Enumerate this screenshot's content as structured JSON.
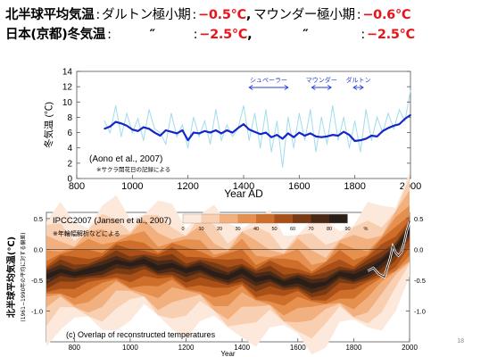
{
  "header": {
    "line1": {
      "label": "北半球平均気温",
      "colon": ":",
      "dalton_label": "ダルトン極小期",
      "dalton_colon": ":",
      "dalton_value": "−0.5℃",
      "sep": ",",
      "maunder_label": "マウンダー極小期",
      "maunder_colon": ":",
      "maunder_value": "−0.6℃"
    },
    "line2": {
      "label": "日本(京都)冬気温",
      "colon": ":",
      "ditto1": "″",
      "colon2": ":",
      "value1": "−2.5℃",
      "sep": ",",
      "ditto2": "″",
      "colon3": ":",
      "value2": "−2.5℃"
    }
  },
  "colors": {
    "raw_line": "#9fdcef",
    "smooth_line": "#1526c8",
    "period_arrow": "#2a3fd0",
    "header_red": "#e8141b",
    "overlap_shades": [
      "#fde9dc",
      "#f9cfb2",
      "#f2b07f",
      "#e6904f",
      "#cf6e2a",
      "#a85018",
      "#7a3a13",
      "#4a2a17",
      "#2a1e18"
    ]
  },
  "chart_data": [
    {
      "type": "line",
      "xlabel": "Year AD",
      "ylabel": "冬気温 (℃)",
      "xlim": [
        800,
        2000
      ],
      "ylim": [
        0,
        14
      ],
      "xticks": [
        800,
        1000,
        1200,
        1400,
        1600,
        1800,
        2000
      ],
      "yticks": [
        0,
        2,
        4,
        6,
        8,
        10,
        12,
        14
      ],
      "citation": "(Aono et al., 2007)",
      "note": "※サクラ開花日の記録による",
      "periods": [
        {
          "name": "シュペーラー",
          "start": 1420,
          "end": 1560
        },
        {
          "name": "マウンダー",
          "start": 1645,
          "end": 1715
        },
        {
          "name": "ダルトン",
          "start": 1795,
          "end": 1830
        }
      ],
      "series": [
        {
          "style": "raw",
          "x": [
            900,
            920,
            940,
            960,
            980,
            1000,
            1020,
            1040,
            1060,
            1080,
            1100,
            1120,
            1140,
            1160,
            1180,
            1200,
            1220,
            1240,
            1260,
            1280,
            1300,
            1320,
            1340,
            1360,
            1380,
            1400,
            1420,
            1440,
            1460,
            1480,
            1500,
            1520,
            1540,
            1560,
            1580,
            1600,
            1620,
            1640,
            1660,
            1680,
            1700,
            1720,
            1740,
            1760,
            1780,
            1800,
            1820,
            1840,
            1860,
            1880,
            1900,
            1920,
            1940,
            1960,
            1980,
            2000
          ],
          "y": [
            7.5,
            6.0,
            9.5,
            5.5,
            8.5,
            6.0,
            7.8,
            5.0,
            9.0,
            6.5,
            6.0,
            4.5,
            8.5,
            5.5,
            7.0,
            4.0,
            8.0,
            5.5,
            7.5,
            4.5,
            9.0,
            5.0,
            7.0,
            5.5,
            6.5,
            9.5,
            5.0,
            8.5,
            4.0,
            9.0,
            3.5,
            7.5,
            1.5,
            8.0,
            4.0,
            8.5,
            5.0,
            9.0,
            3.5,
            8.0,
            4.5,
            9.5,
            5.0,
            8.0,
            4.0,
            7.5,
            3.5,
            9.0,
            5.0,
            8.0,
            6.0,
            8.5,
            6.5,
            9.0,
            7.5,
            11.5
          ]
        },
        {
          "style": "smoothed",
          "x": [
            900,
            920,
            940,
            960,
            980,
            1000,
            1020,
            1040,
            1060,
            1080,
            1100,
            1120,
            1140,
            1160,
            1180,
            1200,
            1220,
            1240,
            1260,
            1280,
            1300,
            1320,
            1340,
            1360,
            1380,
            1400,
            1420,
            1440,
            1460,
            1480,
            1500,
            1520,
            1540,
            1560,
            1580,
            1600,
            1620,
            1640,
            1660,
            1680,
            1700,
            1720,
            1740,
            1760,
            1780,
            1800,
            1820,
            1840,
            1860,
            1880,
            1900,
            1920,
            1940,
            1960,
            1980,
            2000
          ],
          "y": [
            6.5,
            6.8,
            7.4,
            7.2,
            6.9,
            6.4,
            6.2,
            6.7,
            6.5,
            6.0,
            5.6,
            6.3,
            6.1,
            5.9,
            6.3,
            5.0,
            6.0,
            5.9,
            6.2,
            6.0,
            6.3,
            5.9,
            6.3,
            6.0,
            6.6,
            7.1,
            6.4,
            6.1,
            5.8,
            6.0,
            5.4,
            5.7,
            5.2,
            5.9,
            5.4,
            6.0,
            5.6,
            5.9,
            5.5,
            5.4,
            5.5,
            5.7,
            5.6,
            6.1,
            5.7,
            4.9,
            5.0,
            5.2,
            5.6,
            5.5,
            6.2,
            6.6,
            6.9,
            7.1,
            7.8,
            8.3
          ]
        }
      ]
    },
    {
      "type": "area",
      "title": "IPCC2007 (Jansen et al., 2007)",
      "note": "※年輪幅解析などによる",
      "caption": "(c) Overlap of reconstructed temperatures",
      "xlabel": "Year",
      "ylabel": "北半球平均気温(℃)",
      "ylabel_sub": "(1961−1990年の平均に対する偏差)",
      "xlim": [
        700,
        2000
      ],
      "ylim": [
        -1.5,
        0.6
      ],
      "xticks": [
        800,
        1000,
        1200,
        1400,
        1600,
        1800,
        2000
      ],
      "yticks": [
        0.5,
        0.0,
        -0.5,
        -1.0
      ],
      "legend": {
        "ticks": [
          "0",
          "10",
          "20",
          "30",
          "40",
          "50",
          "60",
          "70",
          "80",
          "90",
          "%"
        ]
      },
      "center": {
        "x": [
          700,
          750,
          800,
          850,
          900,
          950,
          1000,
          1050,
          1100,
          1150,
          1200,
          1250,
          1300,
          1350,
          1400,
          1450,
          1500,
          1550,
          1600,
          1650,
          1700,
          1750,
          1800,
          1850,
          1900,
          1950,
          2000
        ],
        "y": [
          -0.45,
          -0.35,
          -0.4,
          -0.35,
          -0.3,
          -0.2,
          -0.25,
          -0.2,
          -0.3,
          -0.25,
          -0.35,
          -0.3,
          -0.4,
          -0.45,
          -0.35,
          -0.5,
          -0.45,
          -0.55,
          -0.5,
          -0.6,
          -0.55,
          -0.4,
          -0.45,
          -0.35,
          -0.2,
          0.0,
          0.3
        ]
      },
      "instrumental": {
        "x": [
          1850,
          1870,
          1890,
          1910,
          1920,
          1930,
          1940,
          1950,
          1960,
          1970,
          1980,
          1990,
          2000
        ],
        "y": [
          -0.35,
          -0.3,
          -0.4,
          -0.45,
          -0.3,
          -0.15,
          0.05,
          -0.05,
          -0.1,
          -0.05,
          0.1,
          0.3,
          0.45
        ]
      }
    }
  ],
  "page_number": "18"
}
